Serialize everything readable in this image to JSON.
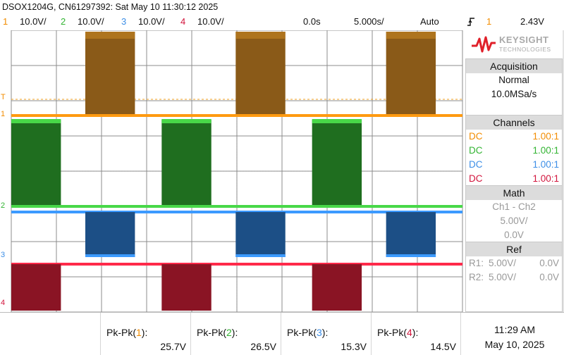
{
  "title": "DSOX1204G, CN61297392: Sat May 10 11:30:12 2025",
  "status": {
    "channels": [
      {
        "num": "1",
        "scale": "10.0V/",
        "color": "#f28c00"
      },
      {
        "num": "2",
        "scale": "10.0V/",
        "color": "#32b432"
      },
      {
        "num": "3",
        "scale": "10.0V/",
        "color": "#3c8ee6"
      },
      {
        "num": "4",
        "scale": "10.0V/",
        "color": "#d2143c"
      }
    ],
    "delay": "0.0s",
    "timebase": "5.000s/",
    "mode": "Auto",
    "trigger_icon": "trigger-rising-edge-icon",
    "trigger_source": "1",
    "trigger_level": "2.43V"
  },
  "logo": {
    "brand": "KEYSIGHT",
    "tagline": "TECHNOLOGIES",
    "icon": "keysight-wave-icon"
  },
  "acquisition": {
    "title": "Acquisition",
    "mode": "Normal",
    "rate": "10.0MSa/s"
  },
  "channels_panel": {
    "title": "Channels",
    "rows": [
      {
        "coupling": "DC",
        "probe": "1.00:1",
        "color": "#f28c00"
      },
      {
        "coupling": "DC",
        "probe": "1.00:1",
        "color": "#32b432"
      },
      {
        "coupling": "DC",
        "probe": "1.00:1",
        "color": "#3c8ee6"
      },
      {
        "coupling": "DC",
        "probe": "1.00:1",
        "color": "#d2143c"
      }
    ]
  },
  "math": {
    "title": "Math",
    "function": "Ch1 - Ch2",
    "scale": "5.00V/",
    "offset": "0.0V"
  },
  "ref": {
    "title": "Ref",
    "rows": [
      {
        "name": "R1:",
        "scale": "5.00V/",
        "offset": "0.0V"
      },
      {
        "name": "R2:",
        "scale": "5.00V/",
        "offset": "0.0V"
      }
    ]
  },
  "measurements": [
    {
      "label_prefix": "Pk-Pk(",
      "channel": "1",
      "label_suffix": "):",
      "value": "25.7V",
      "color": "#f28c00"
    },
    {
      "label_prefix": "Pk-Pk(",
      "channel": "2",
      "label_suffix": "):",
      "value": "26.5V",
      "color": "#32b432"
    },
    {
      "label_prefix": "Pk-Pk(",
      "channel": "3",
      "label_suffix": "):",
      "value": "15.3V",
      "color": "#3c8ee6"
    },
    {
      "label_prefix": "Pk-Pk(",
      "channel": "4",
      "label_suffix": "):",
      "value": "14.5V",
      "color": "#d2143c"
    }
  ],
  "clock": {
    "time": "11:29 AM",
    "date": "May 10, 2025"
  },
  "markers": [
    {
      "text": "T",
      "color": "#f28c00"
    },
    {
      "text": "1",
      "color": "#f28c00"
    },
    {
      "text": "2",
      "color": "#32b432"
    },
    {
      "text": "3",
      "color": "#3c8ee6"
    },
    {
      "text": "4",
      "color": "#d2143c"
    }
  ],
  "waveform_colors": {
    "ch1_fill": "#8a5a18",
    "ch1_line": "#ff9a10",
    "ch2_fill": "#1f6e1f",
    "ch2_line": "#48d848",
    "ch3_fill": "#1c4f86",
    "ch3_line": "#3c9aff",
    "ch4_fill": "#8a1424",
    "ch4_line": "#ff2a4a"
  }
}
